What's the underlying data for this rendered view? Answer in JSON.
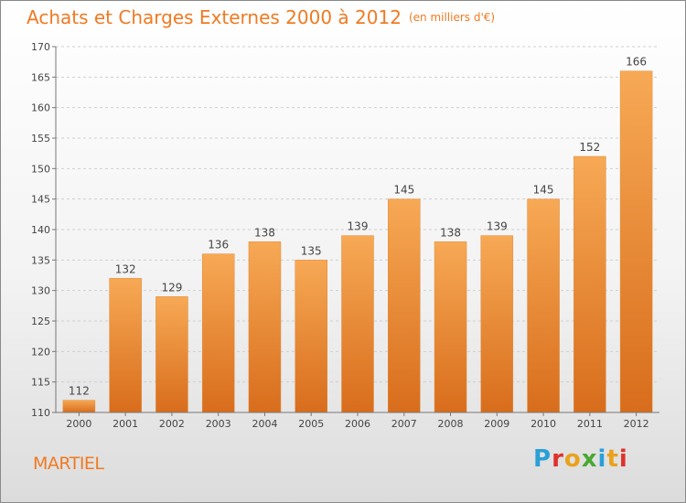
{
  "chart_data": {
    "type": "bar",
    "title": "Achats et Charges Externes 2000 à 2012",
    "subtitle": "(en milliers d'€)",
    "xlabel": "",
    "ylabel": "",
    "categories": [
      "2000",
      "2001",
      "2002",
      "2003",
      "2004",
      "2005",
      "2006",
      "2007",
      "2008",
      "2009",
      "2010",
      "2011",
      "2012"
    ],
    "values": [
      112,
      132,
      129,
      136,
      138,
      135,
      139,
      145,
      138,
      139,
      145,
      152,
      166
    ],
    "ylim": [
      110,
      170
    ],
    "yticks": [
      110,
      115,
      120,
      125,
      130,
      135,
      140,
      145,
      150,
      155,
      160,
      165,
      170
    ],
    "grid": true,
    "bar_color": "#f5a04a",
    "bar_color_dark": "#d9701f"
  },
  "footer": {
    "city": "MARTIEL",
    "logo_text": "Proxiti"
  },
  "colors": {
    "accent": "#f07a22",
    "logo": [
      "#2a9fd8",
      "#e0312b",
      "#e9a21c",
      "#4aa832",
      "#2a9fd8",
      "#e9a21c",
      "#e0312b"
    ]
  }
}
